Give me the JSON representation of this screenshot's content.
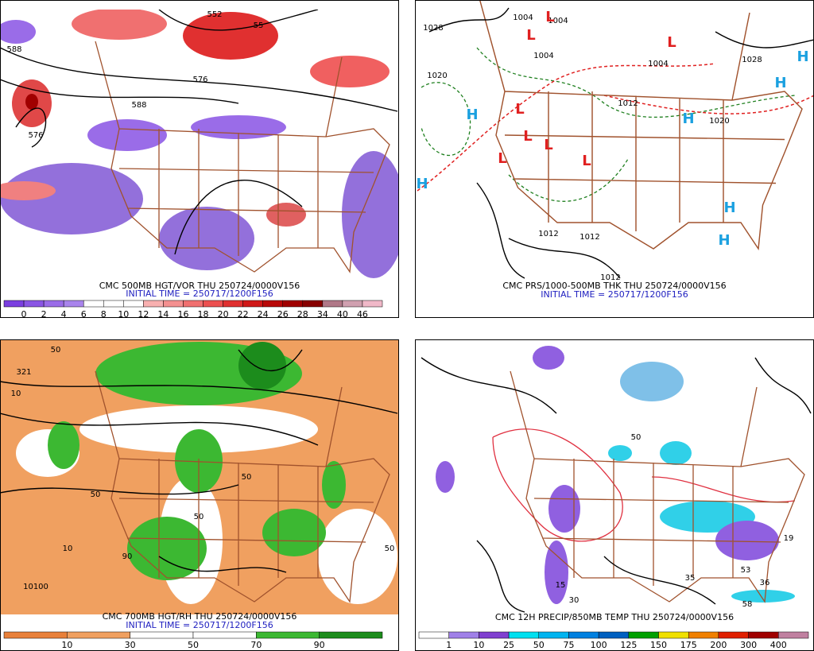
{
  "panels": [
    {
      "caption": "CMC 500MB HGT/VOR THU 250724/0000V156",
      "initial_time": "INITIAL TIME = 250717/1200F156",
      "colorbar": {
        "labels": [
          0,
          2,
          4,
          6,
          8,
          10,
          12,
          14,
          16,
          18,
          20,
          22,
          24,
          26,
          28,
          34,
          40,
          46
        ],
        "colors": [
          "#7b3fe0",
          "#8a55e4",
          "#9a6ce8",
          "#a984ec",
          "#ffffff",
          "#ffffff",
          "#ffffff",
          "#f8b0b0",
          "#f49090",
          "#f07070",
          "#ec5050",
          "#e03030",
          "#d01818",
          "#b80808",
          "#a00000",
          "#880000",
          "#b07888",
          "#d0a0b0",
          "#f0b8c8"
        ]
      },
      "map_labels": [
        "588",
        "576",
        "552",
        "576",
        "588",
        "55"
      ]
    },
    {
      "caption": "CMC PRS/1000-500MB THK THU 250724/0000V156",
      "initial_time": "INITIAL TIME = 250717/1200F156",
      "map_labels": [
        "1028",
        "1020",
        "1004",
        "1004",
        "1004",
        "1004",
        "1012",
        "1012",
        "1012",
        "1012",
        "1020",
        "1028",
        "L",
        "L",
        "L",
        "L",
        "L",
        "L",
        "L",
        "L",
        "H",
        "H",
        "H",
        "H",
        "H",
        "H",
        "H"
      ]
    },
    {
      "caption": "CMC 700MB HGT/RH THU 250724/0000V156",
      "initial_time": "INITIAL TIME = 250717/1200F156",
      "colorbar": {
        "labels": [
          10,
          30,
          50,
          70,
          90
        ],
        "colors": [
          "#e8803a",
          "#f0a060",
          "#ffffff",
          "#ffffff",
          "#3cb832",
          "#1c8c1c"
        ]
      },
      "map_labels": [
        "321",
        "50",
        "10",
        "50",
        "50",
        "10",
        "10100",
        "90",
        "50",
        "50"
      ]
    },
    {
      "caption": "CMC 12H PRECIP/850MB TEMP THU 250724/0000V156",
      "colorbar": {
        "labels": [
          1,
          10,
          25,
          50,
          75,
          100,
          125,
          150,
          175,
          200,
          300,
          400
        ],
        "colors": [
          "#ffffff",
          "#a080e8",
          "#8040d0",
          "#00e0f0",
          "#00b4f0",
          "#0080e0",
          "#0060c0",
          "#00a000",
          "#f0e000",
          "#f08000",
          "#e02000",
          "#a00000",
          "#c080a0"
        ]
      },
      "map_labels": [
        "35",
        "58",
        "36",
        "53",
        "19",
        "50",
        "15",
        "30"
      ]
    }
  ]
}
